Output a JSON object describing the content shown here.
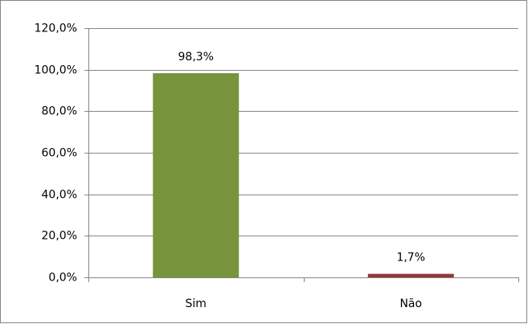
{
  "chart_data": {
    "type": "bar",
    "categories": [
      "Sim",
      "Não"
    ],
    "values": [
      98.3,
      1.7
    ],
    "value_labels": [
      "98,3%",
      "1,7%"
    ],
    "colors": [
      "#77933c",
      "#953735"
    ],
    "ylim": [
      0,
      120
    ],
    "yticks": [
      {
        "value": 0,
        "label": "0,0%"
      },
      {
        "value": 20,
        "label": "20,0%"
      },
      {
        "value": 40,
        "label": "40,0%"
      },
      {
        "value": 60,
        "label": "60,0%"
      },
      {
        "value": 80,
        "label": "80,0%"
      },
      {
        "value": 100,
        "label": "100,0%"
      },
      {
        "value": 120,
        "label": "120,0%"
      }
    ],
    "grid": true
  }
}
